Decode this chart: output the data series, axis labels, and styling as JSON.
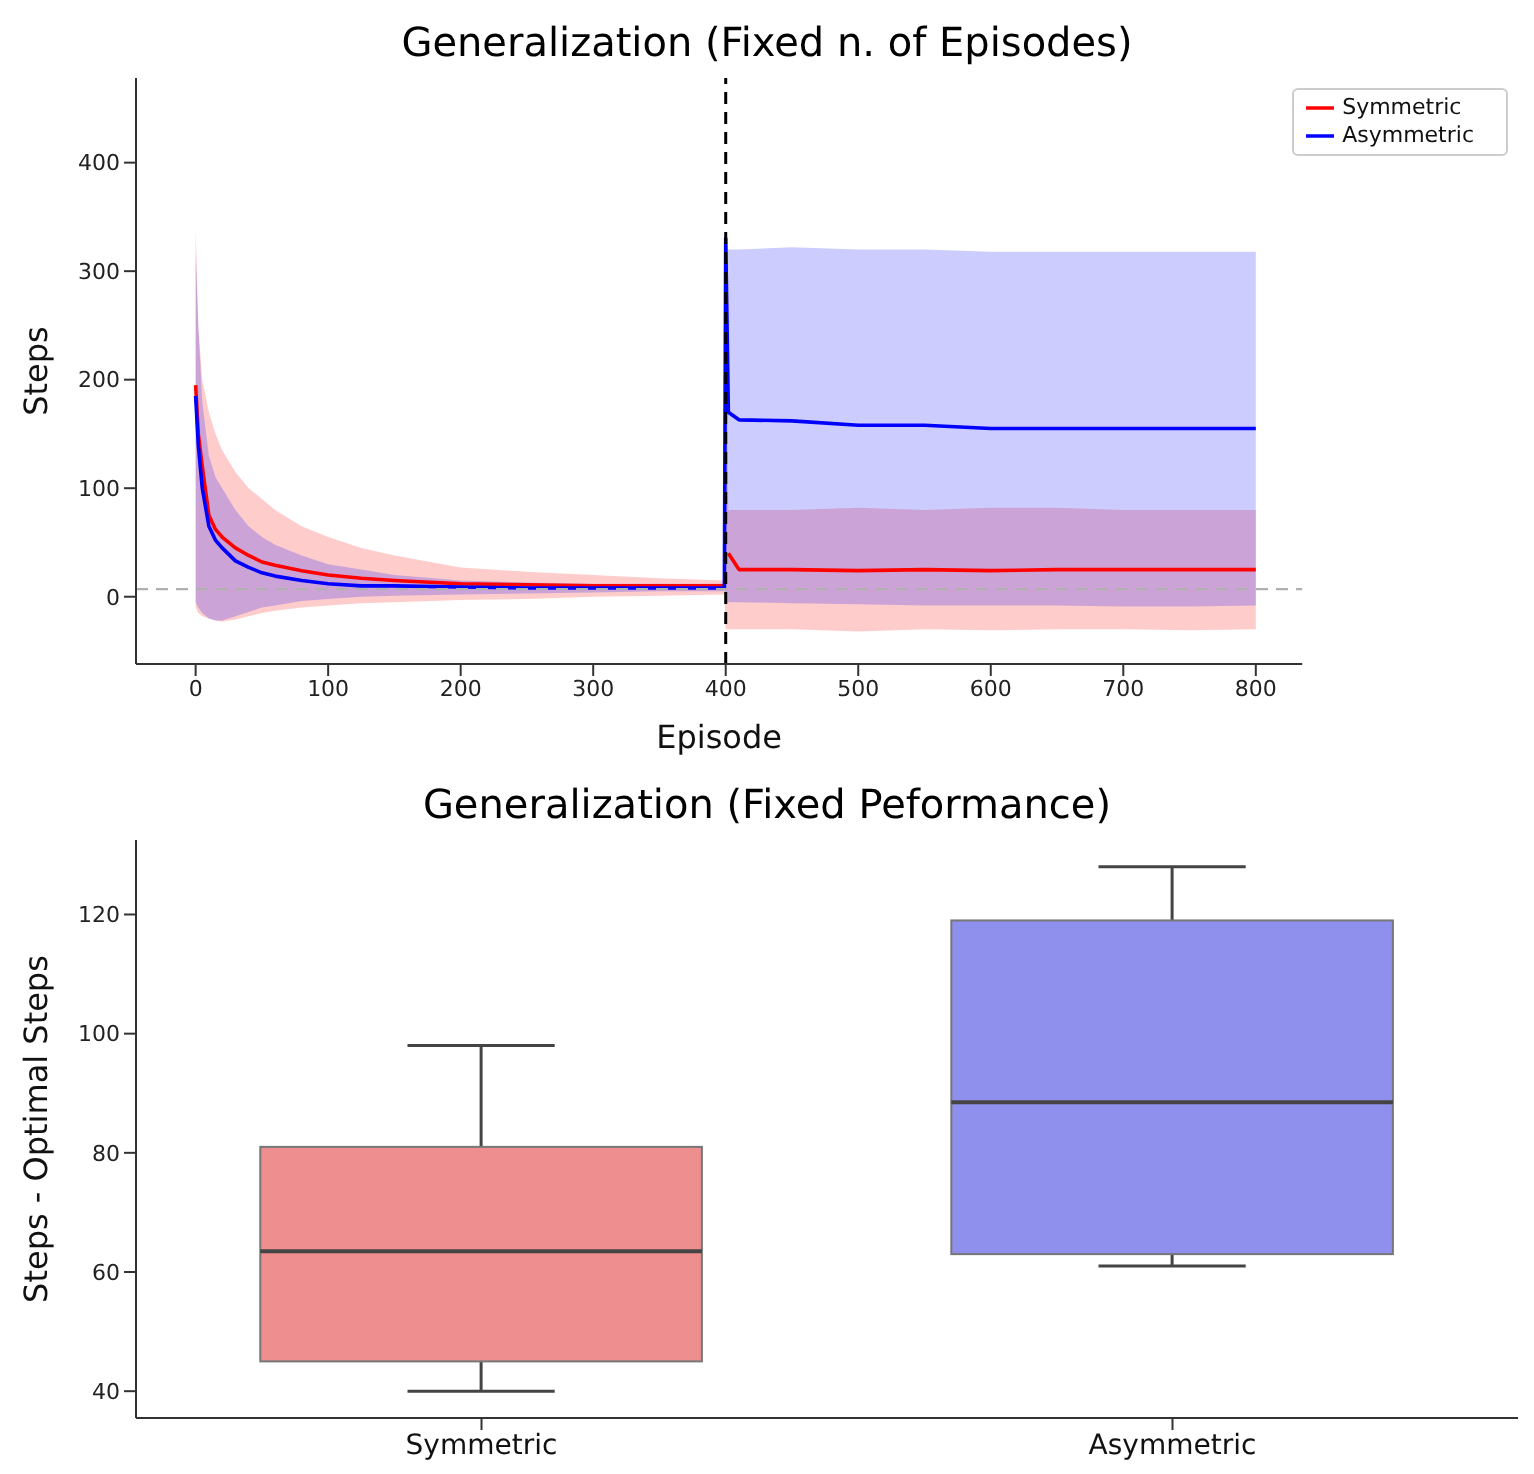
{
  "chart_data": [
    {
      "type": "line",
      "title": "Generalization (Fixed n. of Episodes)",
      "xlabel": "Episode",
      "ylabel": "Steps",
      "x": [
        0,
        2,
        5,
        10,
        15,
        20,
        30,
        40,
        50,
        60,
        80,
        100,
        125,
        150,
        200,
        250,
        300,
        350,
        399,
        400,
        402,
        410,
        450,
        500,
        550,
        600,
        650,
        700,
        750,
        800
      ],
      "series": [
        {
          "name": "Symmetric",
          "color": "#ff0000",
          "values": [
            195,
            150,
            120,
            75,
            62,
            55,
            45,
            38,
            32,
            29,
            24,
            20,
            17,
            15,
            12,
            11,
            10,
            10,
            10,
            null,
            40,
            25,
            25,
            24,
            25,
            24,
            25,
            25,
            25,
            25
          ],
          "lower": [
            -10,
            -15,
            -18,
            -20,
            -22,
            -23,
            -21,
            -18,
            -15,
            -13,
            -10,
            -8,
            -6,
            -5,
            -3,
            -2,
            0,
            1,
            2,
            -30,
            -30,
            -30,
            -30,
            -32,
            -30,
            -31,
            -30,
            -30,
            -31,
            -30
          ],
          "upper": [
            340,
            250,
            200,
            170,
            150,
            135,
            115,
            100,
            90,
            80,
            65,
            55,
            45,
            38,
            27,
            23,
            20,
            17,
            15,
            300,
            80,
            80,
            80,
            82,
            80,
            82,
            82,
            80,
            80,
            80
          ]
        },
        {
          "name": "Asymmetric",
          "color": "#0000ff",
          "values": [
            185,
            140,
            100,
            65,
            52,
            45,
            33,
            27,
            22,
            19,
            15,
            12,
            10,
            10,
            9,
            8,
            8,
            8,
            8,
            330,
            170,
            163,
            162,
            158,
            158,
            155,
            155,
            155,
            155,
            155
          ],
          "lower": [
            -5,
            -10,
            -15,
            -20,
            -22,
            -22,
            -18,
            -14,
            -10,
            -8,
            -4,
            -2,
            0,
            1,
            2,
            3,
            4,
            5,
            5,
            -5,
            -5,
            -5,
            -6,
            -7,
            -8,
            -8,
            -8,
            -9,
            -9,
            -8
          ],
          "upper": [
            320,
            250,
            180,
            130,
            110,
            100,
            80,
            65,
            55,
            48,
            38,
            30,
            25,
            20,
            15,
            13,
            12,
            12,
            12,
            330,
            320,
            320,
            322,
            320,
            320,
            318,
            318,
            318,
            318,
            318
          ]
        }
      ],
      "xlim": [
        -45,
        835
      ],
      "xticks": [
        0,
        100,
        200,
        300,
        400,
        500,
        600,
        700,
        800
      ],
      "ylim": [
        -62,
        478
      ],
      "yticks": [
        0,
        100,
        200,
        300,
        400
      ],
      "ref_lines": [
        {
          "axis": "x",
          "value": 400,
          "color": "#000000",
          "line_style": "dashed"
        },
        {
          "axis": "y",
          "value": 7,
          "color": "#b0b0b0",
          "line_style": "dashed"
        }
      ],
      "legend": "top right"
    },
    {
      "type": "box",
      "title": "Generalization (Fixed Peformance)",
      "ylabel": "Steps - Optimal Steps",
      "categories": [
        "Symmetric",
        "Asymmetric"
      ],
      "colors": [
        "#ee8e8e",
        "#8f8fee"
      ],
      "boxes": [
        {
          "low": 40,
          "q1": 45,
          "median": 63.5,
          "q3": 81,
          "high": 98
        },
        {
          "low": 61,
          "q1": 63,
          "median": 88.5,
          "q3": 119,
          "high": 128
        }
      ],
      "ylim": [
        35.5,
        132.5
      ],
      "yticks": [
        40,
        60,
        80,
        100,
        120
      ]
    }
  ]
}
